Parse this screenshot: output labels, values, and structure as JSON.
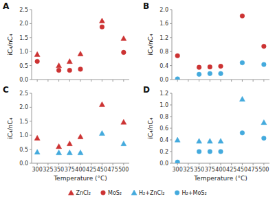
{
  "chart_data": [
    {
      "type": "scatter",
      "title": "A",
      "y_label": "iC₄/nC₄",
      "tick_labels": "y",
      "x": [
        300,
        350,
        375,
        400,
        450,
        500
      ],
      "xlim": [
        287,
        513
      ],
      "xticks": [
        300,
        325,
        350,
        375,
        400,
        425,
        450,
        475,
        500
      ],
      "ylim": [
        0.0,
        2.5
      ],
      "yticks": [
        {
          "value": 0.0,
          "label": "0.0"
        },
        0.5,
        {
          "value": 1.0,
          "label": "1.0"
        },
        1.5,
        {
          "value": 2.0,
          "label": "2.0"
        },
        2.5
      ],
      "series": [
        {
          "name": "ZnCl₂",
          "color": "#cc3333",
          "marker": "triangle",
          "values": [
            0.9,
            0.5,
            0.65,
            0.92,
            2.1,
            1.47
          ]
        },
        {
          "name": "MoS₂",
          "color": "#cc3333",
          "marker": "circle",
          "values": [
            0.65,
            0.33,
            0.33,
            0.37,
            1.88,
            0.97
          ]
        }
      ]
    },
    {
      "type": "scatter",
      "title": "B",
      "y_label": "iC₄/nC₄",
      "tick_labels": "y",
      "x": [
        300,
        350,
        375,
        400,
        450,
        500
      ],
      "xlim": [
        287,
        513
      ],
      "xticks": [
        300,
        325,
        350,
        375,
        400,
        425,
        450,
        475,
        500
      ],
      "ylim": [
        0.0,
        2.0
      ],
      "yticks": [
        {
          "value": 0.0,
          "label": "0.0"
        },
        0.4,
        0.8,
        1.2,
        1.6,
        {
          "value": 2.0,
          "label": "2.0"
        }
      ],
      "series": [
        {
          "name": "MoS₂",
          "color": "#cc3333",
          "marker": "circle",
          "values": [
            0.68,
            0.35,
            0.36,
            0.38,
            1.82,
            0.95
          ]
        },
        {
          "name": "H₂+MoS₂",
          "color": "#44aadd",
          "marker": "circle",
          "values": [
            0.02,
            0.15,
            0.17,
            0.17,
            0.48,
            0.43
          ]
        }
      ]
    },
    {
      "type": "scatter",
      "title": "C",
      "y_label": "iC₄/nC₄",
      "x_label": "Temperature (°C)",
      "x": [
        300,
        350,
        375,
        400,
        450,
        500
      ],
      "xlim": [
        287,
        513
      ],
      "xticks": [
        300,
        325,
        350,
        375,
        400,
        425,
        450,
        475,
        500
      ],
      "ylim": [
        0.0,
        2.5
      ],
      "yticks": [
        {
          "value": 0.0,
          "label": "0.0"
        },
        0.5,
        {
          "value": 1.0,
          "label": "1.0"
        },
        1.5,
        {
          "value": 2.0,
          "label": "2.0"
        },
        2.5
      ],
      "series": [
        {
          "name": "ZnCl₂",
          "color": "#cc3333",
          "marker": "triangle",
          "values": [
            0.9,
            0.6,
            0.7,
            0.95,
            2.1,
            1.47
          ]
        },
        {
          "name": "H₂+ZnCl₂",
          "color": "#44aadd",
          "marker": "triangle",
          "values": [
            0.4,
            0.38,
            0.38,
            0.38,
            1.07,
            0.7
          ]
        }
      ]
    },
    {
      "type": "scatter",
      "title": "D",
      "y_label": "iC₄/nC₄",
      "x_label": "Temperature (°C)",
      "x": [
        300,
        350,
        375,
        400,
        450,
        500
      ],
      "xlim": [
        287,
        513
      ],
      "xticks": [
        300,
        325,
        350,
        375,
        400,
        425,
        450,
        475,
        500
      ],
      "ylim": [
        0.0,
        1.2
      ],
      "yticks": [
        {
          "value": 0.0,
          "label": "0.0"
        },
        0.2,
        0.4,
        0.6,
        0.8,
        {
          "value": 1.0,
          "label": "1.0"
        },
        1.2
      ],
      "series": [
        {
          "name": "H₂+ZnCl₂",
          "color": "#44aadd",
          "marker": "triangle",
          "values": [
            0.4,
            0.38,
            0.38,
            0.38,
            1.1,
            0.7
          ]
        },
        {
          "name": "H₂+MoS₂",
          "color": "#44aadd",
          "marker": "circle",
          "values": [
            0.02,
            0.2,
            0.2,
            0.2,
            0.52,
            0.43
          ]
        }
      ]
    }
  ]
}
